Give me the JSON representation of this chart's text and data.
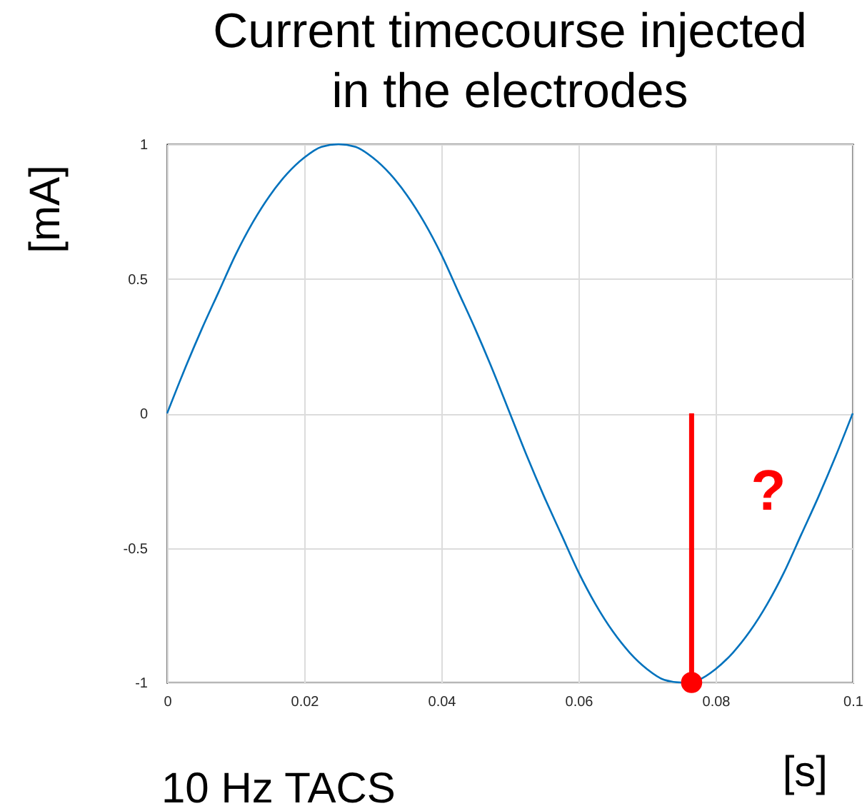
{
  "chart_data": {
    "type": "line",
    "title": "Current timecourse injected\nin the electrodes",
    "xlabel": "[s]",
    "ylabel": "[mA]",
    "xlim": [
      0,
      0.1
    ],
    "xticks": [
      0,
      0.02,
      0.04,
      0.06,
      0.08,
      0.1
    ],
    "ylim": [
      -1,
      1
    ],
    "yticks": [
      -1,
      -0.5,
      0,
      0.5,
      1
    ],
    "grid": true,
    "series": [
      {
        "color": "#0072bd",
        "x": [
          0,
          0.0025,
          0.005,
          0.0075,
          0.01,
          0.0125,
          0.015,
          0.0175,
          0.02,
          0.0225,
          0.025,
          0.0275,
          0.03,
          0.0325,
          0.035,
          0.0375,
          0.04,
          0.0425,
          0.045,
          0.0475,
          0.05,
          0.0525,
          0.055,
          0.0575,
          0.06,
          0.0625,
          0.065,
          0.0675,
          0.07,
          0.0725,
          0.075,
          0.0775,
          0.08,
          0.0825,
          0.085,
          0.0875,
          0.09,
          0.0925,
          0.095,
          0.0975,
          0.1
        ],
        "values": [
          0,
          0.16,
          0.31,
          0.45,
          0.59,
          0.71,
          0.81,
          0.89,
          0.95,
          0.99,
          1,
          0.99,
          0.95,
          0.89,
          0.81,
          0.71,
          0.59,
          0.45,
          0.31,
          0.16,
          0,
          -0.16,
          -0.31,
          -0.45,
          -0.59,
          -0.71,
          -0.81,
          -0.89,
          -0.95,
          -0.99,
          -1,
          -0.99,
          -0.95,
          -0.89,
          -0.81,
          -0.71,
          -0.59,
          -0.45,
          -0.31,
          -0.16,
          0
        ]
      },
      {
        "type": "line",
        "color": "#ff0000",
        "x": [
          0.0765,
          0.0765
        ],
        "values": [
          0,
          -1
        ]
      },
      {
        "type": "scatter",
        "color": "#ff0000",
        "x": [
          0.0765
        ],
        "values": [
          -1
        ]
      }
    ],
    "annotations": [
      "?",
      "10 Hz TACS"
    ]
  }
}
